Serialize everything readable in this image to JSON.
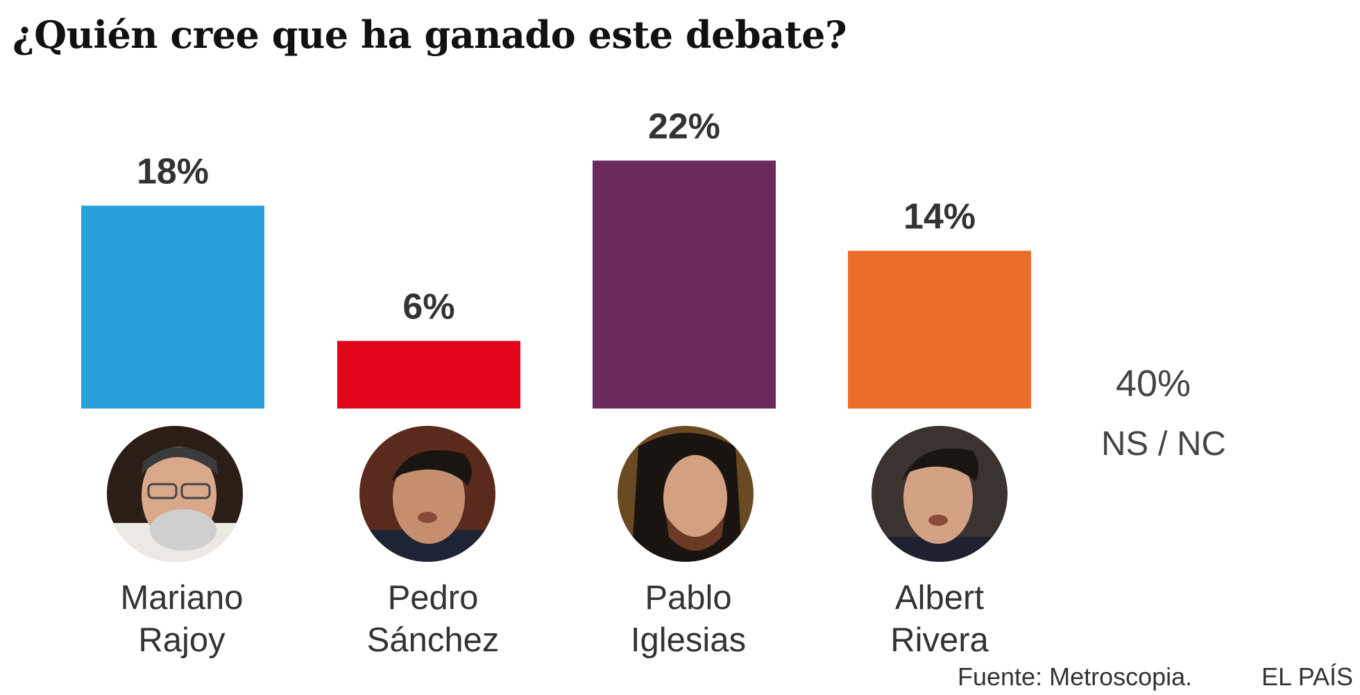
{
  "title": "¿Quién cree que ha ganado este debate?",
  "chart_data": {
    "type": "bar",
    "categories": [
      "Mariano Rajoy",
      "Pedro Sánchez",
      "Pablo Iglesias",
      "Albert Rivera"
    ],
    "values": [
      18,
      6,
      22,
      14
    ],
    "value_labels": [
      "18%",
      "6%",
      "22%",
      "14%"
    ],
    "colors": [
      "#2a9fda",
      "#e0051b",
      "#6a2a5d",
      "#ec6d2a"
    ],
    "unit": "%",
    "xlabel": "",
    "ylabel": "",
    "grid": false,
    "other": {
      "label": "NS / NC",
      "value": 40,
      "value_label": "40%"
    }
  },
  "candidates": [
    {
      "first": "Mariano",
      "last": "Rajoy",
      "portrait": "portrait-photo"
    },
    {
      "first": "Pedro",
      "last": "Sánchez",
      "portrait": "portrait-photo"
    },
    {
      "first": "Pablo",
      "last": "Iglesias",
      "portrait": "portrait-photo"
    },
    {
      "first": "Albert",
      "last": "Rivera",
      "portrait": "portrait-photo"
    }
  ],
  "footer": {
    "source": "Fuente: Metroscopia.",
    "brand": "EL PAÍS"
  }
}
